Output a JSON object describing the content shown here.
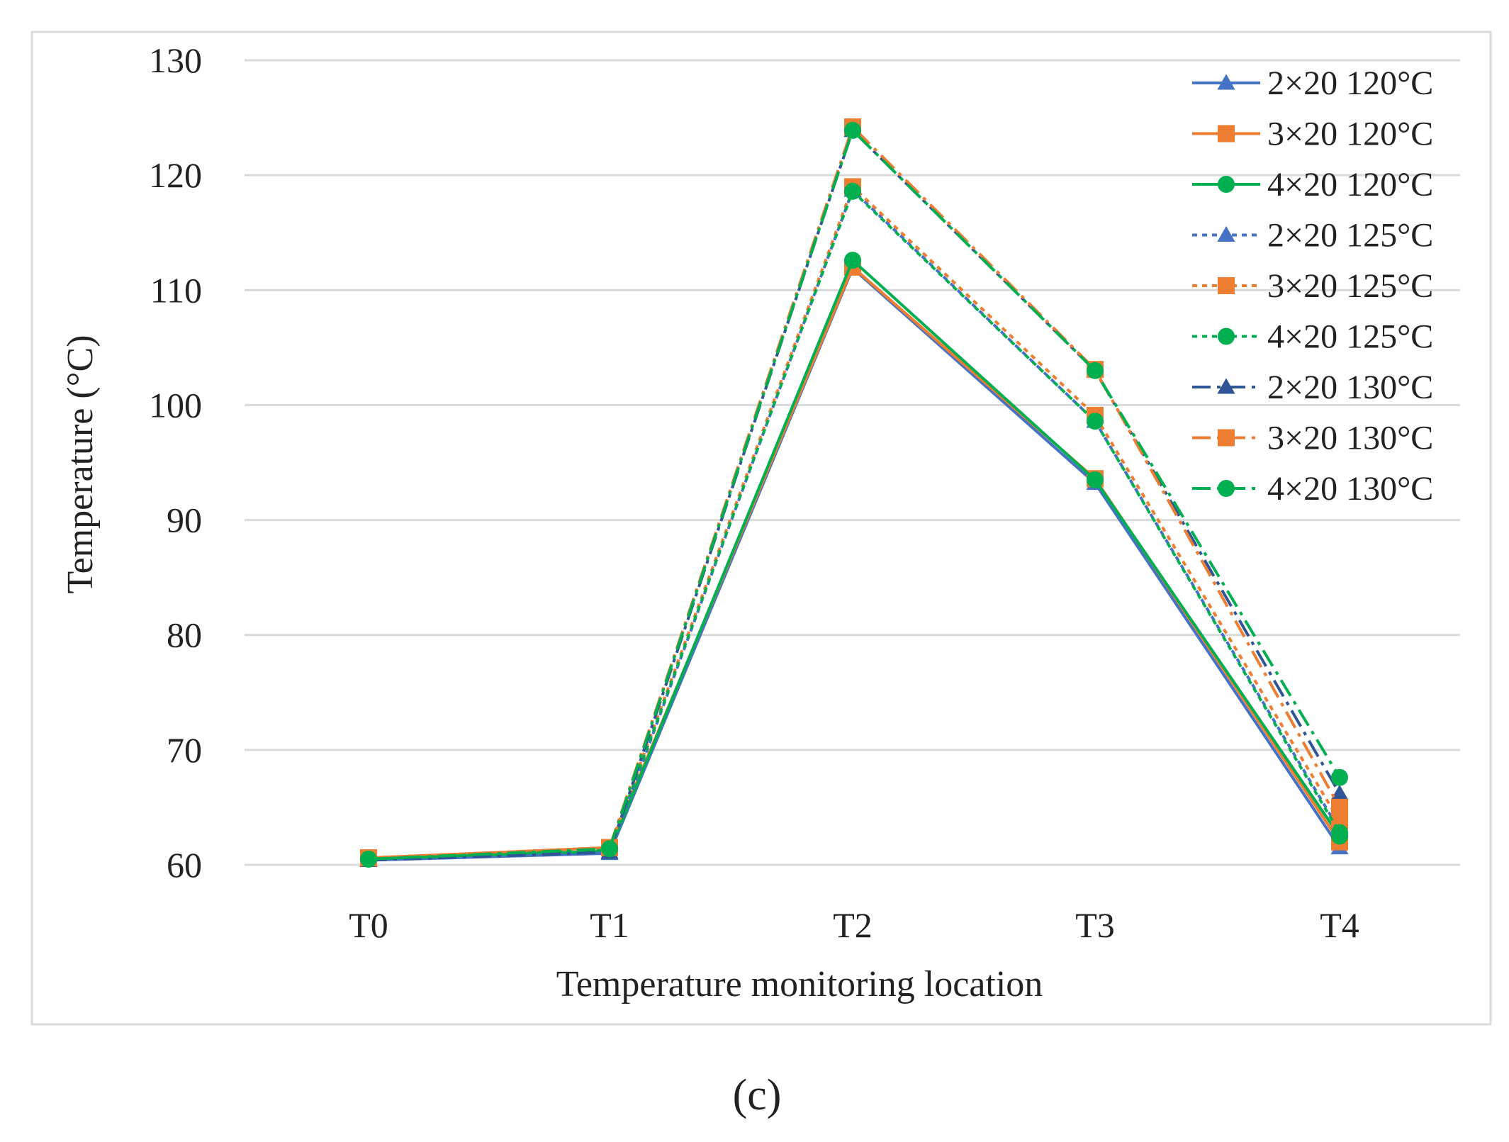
{
  "chart_data": {
    "type": "line",
    "title": "",
    "xlabel": "Temperature monitoring location",
    "ylabel": "Temperature (°C)",
    "categories": [
      "T0",
      "T1",
      "T2",
      "T3",
      "T4"
    ],
    "ylim": [
      60,
      130
    ],
    "yticks": [
      60,
      70,
      80,
      90,
      100,
      110,
      120,
      130
    ],
    "grid": true,
    "legend_position": "top-right",
    "series": [
      {
        "name": "2×20 120°C",
        "color": "#4472C4",
        "dash": "solid",
        "marker": "triangle",
        "values": [
          60.4,
          61.0,
          111.9,
          93.2,
          61.5
        ]
      },
      {
        "name": "3×20 120°C",
        "color": "#ED7D31",
        "dash": "solid",
        "marker": "square",
        "values": [
          60.6,
          61.5,
          112.0,
          93.6,
          62.0
        ]
      },
      {
        "name": "4×20 120°C",
        "color": "#00B050",
        "dash": "solid",
        "marker": "circle",
        "values": [
          60.5,
          61.2,
          112.6,
          93.5,
          62.5
        ]
      },
      {
        "name": "2×20 125°C",
        "color": "#4472C4",
        "dash": "dot",
        "marker": "triangle",
        "values": [
          60.4,
          61.1,
          118.7,
          98.6,
          63.0
        ]
      },
      {
        "name": "3×20 125°C",
        "color": "#ED7D31",
        "dash": "dot",
        "marker": "square",
        "values": [
          60.6,
          61.5,
          119.0,
          99.1,
          63.8
        ]
      },
      {
        "name": "4×20 125°C",
        "color": "#00B050",
        "dash": "dot",
        "marker": "circle",
        "values": [
          60.5,
          61.3,
          118.6,
          98.6,
          62.8
        ]
      },
      {
        "name": "2×20 130°C",
        "color": "#2F5597",
        "dash": "dashdot",
        "marker": "triangle",
        "values": [
          60.4,
          61.1,
          123.9,
          103.0,
          66.2
        ]
      },
      {
        "name": "3×20 130°C",
        "color": "#ED7D31",
        "dash": "dashdot",
        "marker": "square",
        "values": [
          60.6,
          61.5,
          124.2,
          103.1,
          65.0
        ]
      },
      {
        "name": "4×20 130°C",
        "color": "#00B050",
        "dash": "dashdot",
        "marker": "circle",
        "values": [
          60.5,
          61.4,
          123.9,
          103.0,
          67.6
        ]
      }
    ]
  },
  "panel_label": "(c)"
}
